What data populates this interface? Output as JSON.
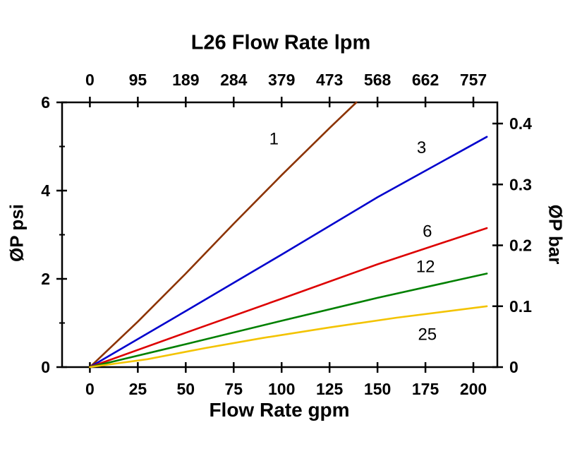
{
  "chart_data": {
    "type": "line",
    "title": "L26 Flow Rate lpm",
    "xlabel": "Flow Rate gpm",
    "ylabel_left": "ØP psi",
    "ylabel_right": "ØP bar",
    "xlim": [
      -14.5,
      212.5
    ],
    "ylim": [
      0,
      6
    ],
    "grid": false,
    "axis_color": "#000000",
    "background_color": "#ffffff",
    "x_ticks": {
      "values": [
        0,
        25,
        50,
        75,
        100,
        125,
        150,
        175,
        200
      ],
      "bottom_labels": [
        "0",
        "25",
        "50",
        "75",
        "100",
        "125",
        "150",
        "175",
        "200"
      ],
      "top_labels": [
        "0",
        "95",
        "189",
        "284",
        "379",
        "473",
        "568",
        "662",
        "757"
      ]
    },
    "y_left_ticks": {
      "values": [
        0,
        2,
        4,
        6
      ],
      "labels": [
        "0",
        "2",
        "4",
        "6"
      ],
      "minor": [
        1,
        3,
        5
      ]
    },
    "y_right_ticks": {
      "bar_values": [
        0,
        0.1,
        0.2,
        0.3,
        0.4
      ],
      "labels": [
        "0",
        "0.1",
        "0.2",
        "0.3",
        "0.4"
      ],
      "psi_positions": [
        0,
        1.38,
        2.76,
        4.14,
        5.52
      ]
    },
    "series": [
      {
        "name": "1",
        "color": "#8C3301",
        "points": [
          [
            0,
            0
          ],
          [
            25,
            1.03
          ],
          [
            50,
            2.12
          ],
          [
            75,
            3.25
          ],
          [
            100,
            4.35
          ],
          [
            125,
            5.42
          ],
          [
            139,
            6.0
          ]
        ],
        "label": {
          "x": 96,
          "y": 5.05
        }
      },
      {
        "name": "3",
        "color": "#0000CD",
        "points": [
          [
            0,
            0
          ],
          [
            50,
            1.27
          ],
          [
            100,
            2.55
          ],
          [
            150,
            3.85
          ],
          [
            207,
            5.22
          ]
        ],
        "label": {
          "x": 173,
          "y": 4.85
        }
      },
      {
        "name": "6",
        "color": "#DD0000",
        "points": [
          [
            0,
            0
          ],
          [
            50,
            0.78
          ],
          [
            100,
            1.55
          ],
          [
            150,
            2.33
          ],
          [
            207,
            3.15
          ]
        ],
        "label": {
          "x": 176,
          "y": 2.95
        }
      },
      {
        "name": "12",
        "color": "#008000",
        "points": [
          [
            0,
            0
          ],
          [
            50,
            0.52
          ],
          [
            100,
            1.05
          ],
          [
            150,
            1.57
          ],
          [
            207,
            2.12
          ]
        ],
        "label": {
          "x": 175,
          "y": 2.15
        }
      },
      {
        "name": "25",
        "color": "#F3C300",
        "points": [
          [
            0,
            0
          ],
          [
            30,
            0.18
          ],
          [
            60,
            0.43
          ],
          [
            90,
            0.66
          ],
          [
            125,
            0.9
          ],
          [
            160,
            1.12
          ],
          [
            207,
            1.38
          ]
        ],
        "label": {
          "x": 176,
          "y": 0.62
        }
      }
    ]
  }
}
